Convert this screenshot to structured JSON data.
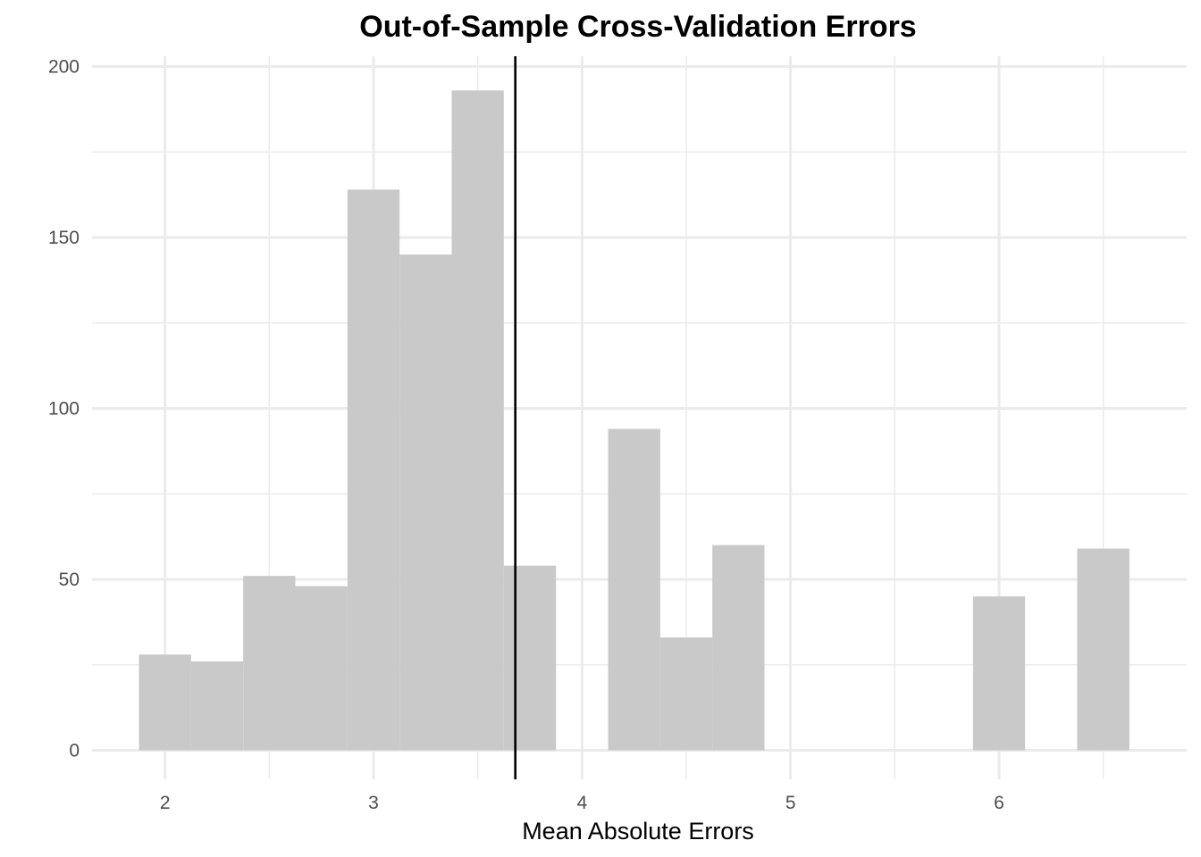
{
  "chart_data": {
    "type": "histogram",
    "title": "Out-of-Sample Cross-Validation Errors",
    "xlabel": "Mean Absolute Errors",
    "ylabel": "",
    "xlim": [
      1.65,
      6.9
    ],
    "ylim": [
      -8.5,
      203
    ],
    "x_ticks": [
      2,
      3,
      4,
      5,
      6
    ],
    "y_ticks": [
      0,
      50,
      100,
      150,
      200
    ],
    "x_minor": [
      2.5,
      3.5,
      4.5,
      5.5,
      6.5
    ],
    "y_minor": [
      25,
      75,
      125,
      175
    ],
    "bin_width": 0.25,
    "bins": [
      {
        "x0": 1.875,
        "x1": 2.125,
        "count": 28
      },
      {
        "x0": 2.125,
        "x1": 2.375,
        "count": 26
      },
      {
        "x0": 2.375,
        "x1": 2.625,
        "count": 51
      },
      {
        "x0": 2.625,
        "x1": 2.875,
        "count": 48
      },
      {
        "x0": 2.875,
        "x1": 3.125,
        "count": 164
      },
      {
        "x0": 3.125,
        "x1": 3.375,
        "count": 145
      },
      {
        "x0": 3.375,
        "x1": 3.625,
        "count": 193
      },
      {
        "x0": 3.625,
        "x1": 3.875,
        "count": 54
      },
      {
        "x0": 3.875,
        "x1": 4.125,
        "count": 0
      },
      {
        "x0": 4.125,
        "x1": 4.375,
        "count": 94
      },
      {
        "x0": 4.375,
        "x1": 4.625,
        "count": 33
      },
      {
        "x0": 4.625,
        "x1": 4.875,
        "count": 60
      },
      {
        "x0": 4.875,
        "x1": 5.125,
        "count": 0
      },
      {
        "x0": 5.125,
        "x1": 5.375,
        "count": 0
      },
      {
        "x0": 5.375,
        "x1": 5.625,
        "count": 0
      },
      {
        "x0": 5.625,
        "x1": 5.875,
        "count": 0
      },
      {
        "x0": 5.875,
        "x1": 6.125,
        "count": 45
      },
      {
        "x0": 6.125,
        "x1": 6.375,
        "count": 0
      },
      {
        "x0": 6.375,
        "x1": 6.625,
        "count": 59
      }
    ],
    "vline": {
      "x": 3.68,
      "color": "#000000"
    },
    "bar_color": "#c9c9c9",
    "grid": true,
    "grid_color": "#ebebeb",
    "background": "#ffffff"
  }
}
